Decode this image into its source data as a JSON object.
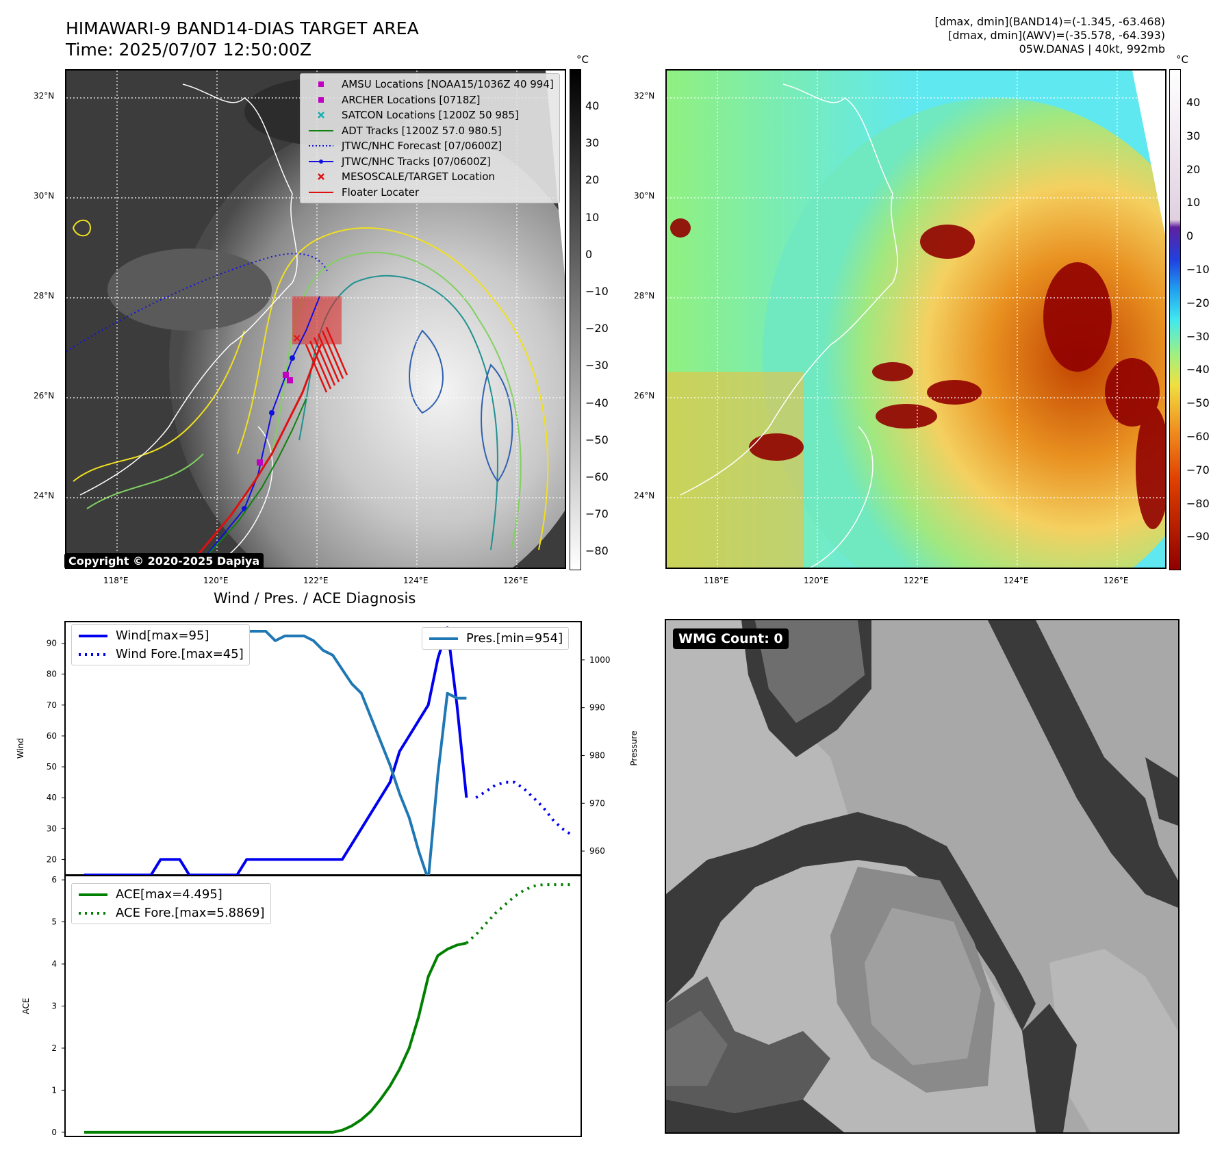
{
  "header": {
    "title_line1": "HIMAWARI-9 BAND14-DIAS TARGET AREA",
    "title_line2": "Time: 2025/07/07 12:50:00Z",
    "right_line1": "[dmax, dmin](BAND14)=(-1.345, -63.468)",
    "right_line2": "[dmax, dmin](AWV)=(-35.578, -64.393)",
    "right_line3": "05W.DANAS | 40kt, 992mb"
  },
  "map_axes": {
    "lat_labels": [
      "32°N",
      "30°N",
      "28°N",
      "26°N",
      "24°N"
    ],
    "lon_labels": [
      "118°E",
      "120°E",
      "122°E",
      "124°E",
      "126°E"
    ]
  },
  "colorbar_left": {
    "unit": "°C",
    "ticks": [
      "40",
      "30",
      "20",
      "10",
      "0",
      "−10",
      "−20",
      "−30",
      "−40",
      "−50",
      "−60",
      "−70",
      "−80"
    ]
  },
  "colorbar_right": {
    "unit": "°C",
    "ticks": [
      "40",
      "30",
      "20",
      "10",
      "0",
      "−10",
      "−20",
      "−30",
      "−40",
      "−50",
      "−60",
      "−70",
      "−80",
      "−90"
    ]
  },
  "map_legend": [
    {
      "label": "AMSU Locations [NOAA15/1036Z 40 994]",
      "marker": "square",
      "color": "#c000c0"
    },
    {
      "label": "ARCHER Locations [0718Z]",
      "marker": "square",
      "color": "#c000c0"
    },
    {
      "label": "SATCON Locations [1200Z 50 985]",
      "marker": "x",
      "color": "#10b0b0"
    },
    {
      "label": "ADT Tracks [1200Z 57.0 980.5]",
      "marker": "line",
      "color": "#108010"
    },
    {
      "label": "JTWC/NHC Forecast [07/0600Z]",
      "marker": "dotted",
      "color": "#1010e0"
    },
    {
      "label": "JTWC/NHC Tracks [07/0600Z]",
      "marker": "dotline",
      "color": "#1010e0"
    },
    {
      "label": "MESOSCALE/TARGET Location",
      "marker": "x",
      "color": "#e01010"
    },
    {
      "label": "Floater Locater",
      "marker": "line",
      "color": "#e01010"
    }
  ],
  "copyright": "Copyright © 2020-2025 Dapiya",
  "diagnosis_title": "Wind / Pres. / ACE Diagnosis",
  "wmg_label": "WMG Count: 0",
  "colors": {
    "wind": "#0000ee",
    "pressure": "#1f77b4",
    "ace": "#008000"
  },
  "chart_data": [
    {
      "type": "line",
      "title": "Wind / Pres. / ACE Diagnosis",
      "ylabel": "Wind",
      "y2label": "Pressure",
      "ylim": [
        15,
        97
      ],
      "y2lim": [
        955,
        1008
      ],
      "yticks": [
        "90",
        "80",
        "70",
        "60",
        "50",
        "40",
        "30",
        "20"
      ],
      "y2ticks": [
        "1000",
        "990",
        "980",
        "970",
        "960"
      ],
      "series": [
        {
          "name": "Wind[max=95]",
          "axis": "left",
          "style": "solid",
          "x": [
            0,
            1,
            2,
            3,
            4,
            5,
            6,
            7,
            8,
            9,
            10,
            11,
            12,
            13,
            14,
            15,
            16,
            17,
            18,
            19,
            20,
            21,
            22,
            23,
            24,
            25,
            26,
            27,
            28,
            29,
            30,
            31,
            32,
            33,
            34,
            35,
            36,
            37,
            38,
            39,
            40
          ],
          "values": [
            15,
            15,
            15,
            15,
            15,
            15,
            15,
            15,
            20,
            20,
            20,
            15,
            15,
            15,
            15,
            15,
            15,
            20,
            20,
            20,
            20,
            20,
            20,
            20,
            20,
            20,
            20,
            20,
            25,
            30,
            35,
            40,
            45,
            55,
            60,
            65,
            70,
            85,
            95,
            70,
            40
          ]
        },
        {
          "name": "Wind Fore.[max=45]",
          "axis": "left",
          "style": "dotted",
          "x": [
            41,
            42,
            43,
            44,
            45,
            46,
            47,
            48,
            49,
            50,
            51
          ],
          "values": [
            40,
            42,
            44,
            45,
            45,
            43,
            40,
            37,
            33,
            30,
            28
          ]
        },
        {
          "name": "Pres.[min=954]",
          "axis": "right",
          "style": "solid",
          "x": [
            0,
            1,
            2,
            3,
            4,
            5,
            6,
            7,
            8,
            9,
            10,
            11,
            12,
            13,
            14,
            15,
            16,
            17,
            18,
            19,
            20,
            21,
            22,
            23,
            24,
            25,
            26,
            27,
            28,
            29,
            30,
            31,
            32,
            33,
            34,
            35,
            36,
            37,
            38,
            39,
            40
          ],
          "values": [
            1007,
            1007,
            1007,
            1007,
            1006,
            1005,
            1005,
            1005,
            1005,
            1005,
            1005,
            1005,
            1005,
            1006,
            1006,
            1005,
            1005,
            1006,
            1006,
            1006,
            1004,
            1005,
            1005,
            1005,
            1004,
            1002,
            1001,
            998,
            995,
            993,
            988,
            983,
            978,
            972,
            967,
            960,
            954,
            976,
            993,
            992,
            992
          ]
        }
      ]
    },
    {
      "type": "line",
      "ylabel": "ACE",
      "ylim": [
        -0.1,
        6.1
      ],
      "yticks": [
        "6",
        "5",
        "4",
        "3",
        "2",
        "1",
        "0"
      ],
      "series": [
        {
          "name": "ACE[max=4.495]",
          "style": "solid",
          "x": [
            0,
            5,
            10,
            15,
            20,
            25,
            26,
            27,
            28,
            29,
            30,
            31,
            32,
            33,
            34,
            35,
            36,
            37,
            38,
            39,
            40
          ],
          "values": [
            0,
            0,
            0,
            0,
            0,
            0,
            0,
            0.05,
            0.15,
            0.3,
            0.5,
            0.78,
            1.1,
            1.5,
            2.0,
            2.75,
            3.7,
            4.2,
            4.35,
            4.45,
            4.495
          ]
        },
        {
          "name": "ACE Fore.[max=5.8869]",
          "style": "dotted",
          "x": [
            40,
            41,
            42,
            43,
            44,
            45,
            46,
            47,
            48,
            49,
            50,
            51
          ],
          "values": [
            4.495,
            4.7,
            4.95,
            5.2,
            5.4,
            5.6,
            5.75,
            5.85,
            5.8869,
            5.8869,
            5.8869,
            5.8869
          ]
        }
      ]
    }
  ]
}
